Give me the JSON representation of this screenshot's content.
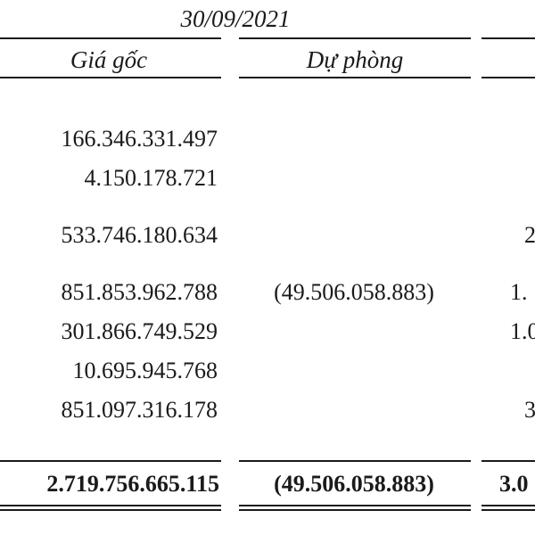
{
  "header": {
    "period": "30/09/2021",
    "col_cost": "Giá gốc",
    "col_provision": "Dự phòng"
  },
  "rows": [
    {
      "cost": "166.346.331.497",
      "provision": "",
      "next": ""
    },
    {
      "cost": "4.150.178.721",
      "provision": "",
      "next": ""
    },
    {
      "cost": "533.746.180.634",
      "provision": "",
      "next": "2"
    },
    {
      "cost": "851.853.962.788",
      "provision": "(49.506.058.883)",
      "next": "1."
    },
    {
      "cost": "301.866.749.529",
      "provision": "",
      "next": "1.0"
    },
    {
      "cost": "10.695.945.768",
      "provision": "",
      "next": ""
    },
    {
      "cost": "851.097.316.178",
      "provision": "",
      "next": "3"
    }
  ],
  "total": {
    "cost": "2.719.756.665.115",
    "provision": "(49.506.058.883)",
    "next": "3.0"
  }
}
